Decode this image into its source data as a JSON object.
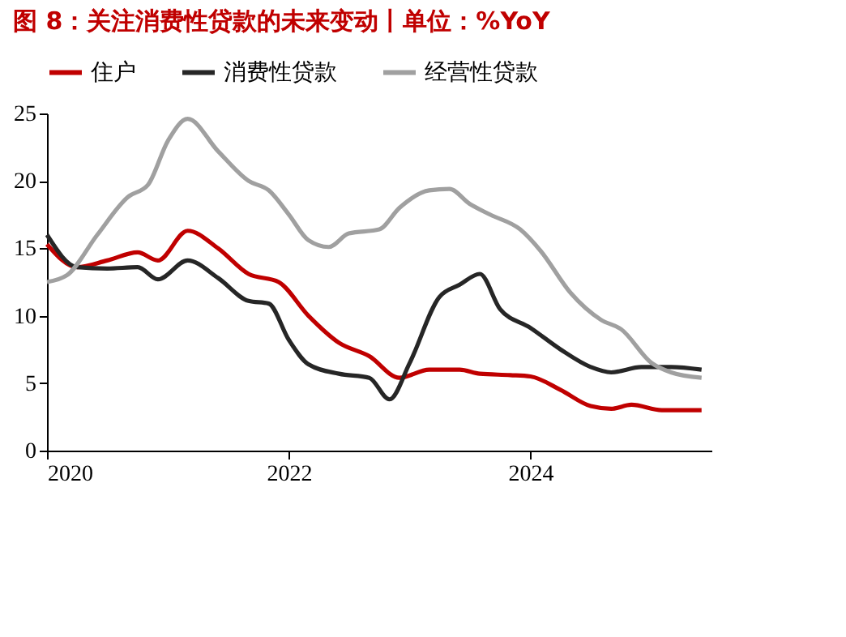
{
  "chart_data": {
    "type": "line",
    "title": "图 8：关注消费性贷款的未来变动丨单位：%YoY",
    "xlim": [
      "2020-01",
      "2025-07"
    ],
    "xticks": [
      {
        "value": "2020-01",
        "label": "2020"
      },
      {
        "value": "2022-01",
        "label": "2022"
      },
      {
        "value": "2024-01",
        "label": "2024"
      }
    ],
    "ylim": [
      0,
      25
    ],
    "yticks": [
      0,
      5,
      10,
      15,
      20,
      25
    ],
    "grid": false,
    "legend": "top",
    "marker": "none",
    "line_style": "solid",
    "series": [
      {
        "name": "住户",
        "color": "#c00000",
        "x": [
          "2020-01",
          "2020-04",
          "2020-07",
          "2020-10",
          "2020-12",
          "2021-03",
          "2021-06",
          "2021-09",
          "2021-12",
          "2022-03",
          "2022-06",
          "2022-09",
          "2022-12",
          "2023-03",
          "2023-06",
          "2023-08",
          "2023-11",
          "2024-01",
          "2024-04",
          "2024-07",
          "2024-09",
          "2024-11",
          "2025-02",
          "2025-06"
        ],
        "values": [
          15.3,
          13.6,
          14.1,
          14.7,
          14.1,
          16.3,
          15.0,
          13.1,
          12.5,
          10.0,
          8.0,
          7.0,
          5.4,
          6.0,
          6.0,
          5.7,
          5.6,
          5.5,
          4.5,
          3.3,
          3.1,
          3.4,
          3.0,
          3.0
        ]
      },
      {
        "name": "消费性贷款",
        "color": "#262626",
        "x": [
          "2020-01",
          "2020-04",
          "2020-07",
          "2020-10",
          "2020-12",
          "2021-03",
          "2021-06",
          "2021-09",
          "2021-11",
          "2022-01",
          "2022-03",
          "2022-06",
          "2022-09",
          "2022-11",
          "2023-01",
          "2023-04",
          "2023-06",
          "2023-08",
          "2023-10",
          "2024-01",
          "2024-04",
          "2024-07",
          "2024-09",
          "2024-12",
          "2025-03",
          "2025-06"
        ],
        "values": [
          16.0,
          13.6,
          13.5,
          13.6,
          12.7,
          14.1,
          12.8,
          11.1,
          10.9,
          8.2,
          6.4,
          5.7,
          5.4,
          3.8,
          6.5,
          11.4,
          12.3,
          13.1,
          10.5,
          9.1,
          7.5,
          6.2,
          5.8,
          6.2,
          6.2,
          6.0
        ]
      },
      {
        "name": "经营性贷款",
        "color": "#a0a0a0",
        "x": [
          "2020-01",
          "2020-03",
          "2020-06",
          "2020-09",
          "2020-11",
          "2021-01",
          "2021-03",
          "2021-06",
          "2021-09",
          "2021-11",
          "2022-01",
          "2022-03",
          "2022-05",
          "2022-07",
          "2022-10",
          "2022-12",
          "2023-03",
          "2023-05",
          "2023-07",
          "2023-09",
          "2023-12",
          "2024-02",
          "2024-05",
          "2024-08",
          "2024-10",
          "2025-01",
          "2025-03",
          "2025-06"
        ],
        "values": [
          12.5,
          13.0,
          16.0,
          18.8,
          19.7,
          23.0,
          24.6,
          22.2,
          20.0,
          19.3,
          17.5,
          15.6,
          15.1,
          16.1,
          16.4,
          18.0,
          19.3,
          19.4,
          18.3,
          17.5,
          16.4,
          14.8,
          11.7,
          9.7,
          9.0,
          6.5,
          5.8,
          5.4
        ]
      }
    ]
  }
}
